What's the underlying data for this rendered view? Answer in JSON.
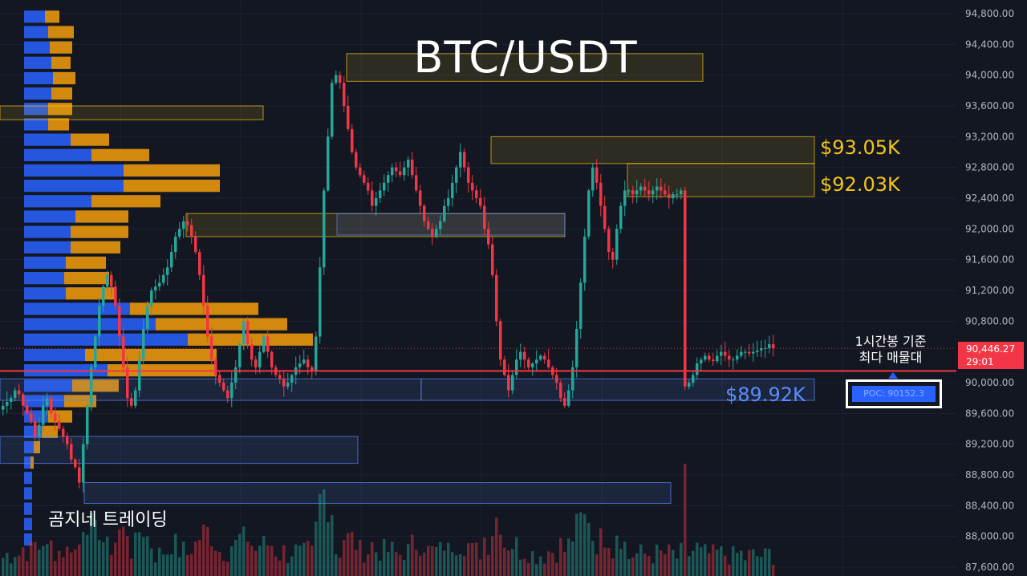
{
  "header": {
    "title": "BTC/USDT"
  },
  "watermark": "곰지네 트레이딩",
  "levels": {
    "resistance_1": {
      "label": "$93.05K",
      "color": "#f5c518"
    },
    "resistance_2": {
      "label": "$92.03K",
      "color": "#f5c518"
    },
    "support": {
      "label": "$89.92K",
      "color": "#5b8cff"
    }
  },
  "poc": {
    "caption_line1": "1시간봉 기준",
    "caption_line2": "최다 매물대",
    "label": "POC: 90152.3"
  },
  "last_price": {
    "price": "90,446.27",
    "countdown": "29:01"
  },
  "colors": {
    "up": "#26a69a",
    "down": "#f23645",
    "poc_line": "#f23645",
    "accent": "#2962ff",
    "zone_yellow": "#f5c518",
    "zone_blue": "#5b8cff",
    "profile_blue": "#2962ff",
    "profile_orange": "#f59e0b"
  },
  "chart_data": {
    "type": "candlestick",
    "title": "BTC/USDT",
    "y_axis": {
      "ticks": [
        "94,800.00",
        "94,400.00",
        "94,000.00",
        "93,600.00",
        "93,200.00",
        "92,800.00",
        "92,400.00",
        "92,000.00",
        "91,600.00",
        "91,200.00",
        "90,800.00",
        "90,000.00",
        "89,600.00",
        "89,200.00",
        "88,800.00",
        "88,400.00",
        "88,000.00",
        "87,600.00"
      ],
      "range": [
        87500,
        94900
      ]
    },
    "grid": true,
    "poc_price": 90152.3,
    "last_price": 90446.27,
    "closes": [
      89700,
      89750,
      89800,
      89900,
      89850,
      89700,
      89600,
      89500,
      89300,
      89450,
      89700,
      89800,
      89600,
      89500,
      89400,
      89300,
      89200,
      89000,
      88900,
      88700,
      89200,
      89700,
      90200,
      90600,
      91000,
      91250,
      91400,
      91250,
      91000,
      90600,
      90200,
      89800,
      89700,
      89900,
      90300,
      90700,
      91000,
      91200,
      91250,
      91300,
      91400,
      91500,
      91700,
      91900,
      92000,
      92100,
      92050,
      91900,
      91700,
      91400,
      91000,
      90600,
      90300,
      90100,
      90000,
      89900,
      89800,
      90000,
      90200,
      90500,
      90800,
      90500,
      90300,
      90200,
      90400,
      90600,
      90400,
      90200,
      90100,
      90050,
      89950,
      90000,
      90100,
      90200,
      90250,
      90300,
      90200,
      90150,
      90600,
      91500,
      92500,
      93200,
      93900,
      94000,
      93900,
      93600,
      93300,
      93000,
      92800,
      92700,
      92600,
      92500,
      92300,
      92400,
      92500,
      92600,
      92700,
      92800,
      92750,
      92700,
      92800,
      92900,
      92700,
      92500,
      92300,
      92100,
      92000,
      91900,
      92000,
      92100,
      92300,
      92400,
      92600,
      92800,
      93000,
      92800,
      92600,
      92500,
      92400,
      92300,
      92000,
      91800,
      91400,
      90800,
      90300,
      90100,
      89900,
      90100,
      90300,
      90400,
      90300,
      90200,
      90250,
      90300,
      90350,
      90300,
      90200,
      90100,
      90000,
      89800,
      89700,
      89900,
      90200,
      90700,
      91300,
      91900,
      92500,
      92800,
      92600,
      92300,
      92000,
      91700,
      91600,
      92000,
      92300,
      92500,
      92500,
      92450,
      92500,
      92550,
      92500,
      92450,
      92500,
      92550,
      92500,
      92450,
      92400,
      92450,
      92450,
      92500,
      89950,
      90000,
      90100,
      90250,
      90300,
      90350,
      90300,
      90280,
      90350,
      90400,
      90350,
      90300,
      90300,
      90350,
      90400,
      90400,
      90380,
      90400,
      90420,
      90450,
      90450,
      90500,
      90446
    ]
  }
}
